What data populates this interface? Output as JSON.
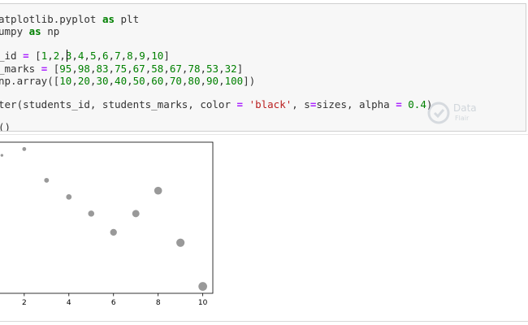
{
  "code": {
    "lines": [
      [
        {
          "t": "atplotlib.pyplot ",
          "c": ""
        },
        {
          "t": "as",
          "c": "kw"
        },
        {
          "t": " plt",
          "c": ""
        }
      ],
      [
        {
          "t": "umpy ",
          "c": ""
        },
        {
          "t": "as",
          "c": "kw"
        },
        {
          "t": " np",
          "c": ""
        }
      ],
      [],
      [
        {
          "t": "_id ",
          "c": ""
        },
        {
          "t": "=",
          "c": "op"
        },
        {
          "t": " [",
          "c": ""
        },
        {
          "t": "1",
          "c": "num"
        },
        {
          "t": ",",
          "c": ""
        },
        {
          "t": "2",
          "c": "num"
        },
        {
          "t": ",",
          "c": ""
        },
        {
          "t": "3",
          "c": "num"
        },
        {
          "t": ",",
          "c": ""
        },
        {
          "t": "4",
          "c": "num"
        },
        {
          "t": ",",
          "c": ""
        },
        {
          "t": "5",
          "c": "num"
        },
        {
          "t": ",",
          "c": ""
        },
        {
          "t": "6",
          "c": "num"
        },
        {
          "t": ",",
          "c": ""
        },
        {
          "t": "7",
          "c": "num"
        },
        {
          "t": ",",
          "c": ""
        },
        {
          "t": "8",
          "c": "num"
        },
        {
          "t": ",",
          "c": ""
        },
        {
          "t": "9",
          "c": "num"
        },
        {
          "t": ",",
          "c": ""
        },
        {
          "t": "10",
          "c": "num"
        },
        {
          "t": "]",
          "c": ""
        }
      ],
      [
        {
          "t": "_marks ",
          "c": ""
        },
        {
          "t": "=",
          "c": "op"
        },
        {
          "t": " [",
          "c": ""
        },
        {
          "t": "95",
          "c": "num"
        },
        {
          "t": ",",
          "c": ""
        },
        {
          "t": "98",
          "c": "num"
        },
        {
          "t": ",",
          "c": ""
        },
        {
          "t": "83",
          "c": "num"
        },
        {
          "t": ",",
          "c": ""
        },
        {
          "t": "75",
          "c": "num"
        },
        {
          "t": ",",
          "c": ""
        },
        {
          "t": "67",
          "c": "num"
        },
        {
          "t": ",",
          "c": ""
        },
        {
          "t": "58",
          "c": "num"
        },
        {
          "t": ",",
          "c": ""
        },
        {
          "t": "67",
          "c": "num"
        },
        {
          "t": ",",
          "c": ""
        },
        {
          "t": "78",
          "c": "num"
        },
        {
          "t": ",",
          "c": ""
        },
        {
          "t": "53",
          "c": "num"
        },
        {
          "t": ",",
          "c": ""
        },
        {
          "t": "32",
          "c": "num"
        },
        {
          "t": "]",
          "c": ""
        }
      ],
      [
        {
          "t": "np.array([",
          "c": ""
        },
        {
          "t": "10",
          "c": "num"
        },
        {
          "t": ",",
          "c": ""
        },
        {
          "t": "20",
          "c": "num"
        },
        {
          "t": ",",
          "c": ""
        },
        {
          "t": "30",
          "c": "num"
        },
        {
          "t": ",",
          "c": ""
        },
        {
          "t": "40",
          "c": "num"
        },
        {
          "t": ",",
          "c": ""
        },
        {
          "t": "50",
          "c": "num"
        },
        {
          "t": ",",
          "c": ""
        },
        {
          "t": "60",
          "c": "num"
        },
        {
          "t": ",",
          "c": ""
        },
        {
          "t": "70",
          "c": "num"
        },
        {
          "t": ",",
          "c": ""
        },
        {
          "t": "80",
          "c": "num"
        },
        {
          "t": ",",
          "c": ""
        },
        {
          "t": "90",
          "c": "num"
        },
        {
          "t": ",",
          "c": ""
        },
        {
          "t": "100",
          "c": "num"
        },
        {
          "t": "])",
          "c": ""
        }
      ],
      [],
      [
        {
          "t": "ter(students_id, students_marks, color ",
          "c": ""
        },
        {
          "t": "=",
          "c": "op"
        },
        {
          "t": " ",
          "c": ""
        },
        {
          "t": "'black'",
          "c": "str"
        },
        {
          "t": ", s",
          "c": ""
        },
        {
          "t": "=",
          "c": "op"
        },
        {
          "t": "sizes, alpha ",
          "c": ""
        },
        {
          "t": "=",
          "c": "op"
        },
        {
          "t": " ",
          "c": ""
        },
        {
          "t": "0.4",
          "c": "num"
        },
        {
          "t": ")",
          "c": ""
        }
      ],
      [],
      [
        {
          "t": "()",
          "c": ""
        }
      ]
    ]
  },
  "watermark": {
    "line1": "Data",
    "line2": "Flair"
  },
  "colors": {
    "point": "#000000",
    "point_alpha": 0.4,
    "axis": "#000000",
    "keyword": "#008000",
    "operator": "#aa22ff",
    "string": "#ba2121"
  },
  "chart_data": {
    "type": "scatter",
    "x": [
      1,
      2,
      3,
      4,
      5,
      6,
      7,
      8,
      9,
      10
    ],
    "y": [
      95,
      98,
      83,
      75,
      67,
      58,
      67,
      78,
      53,
      32
    ],
    "sizes": [
      10,
      20,
      30,
      40,
      50,
      60,
      70,
      80,
      90,
      100
    ],
    "xticks": [
      "2",
      "4",
      "6",
      "8",
      "10"
    ],
    "xtick_values": [
      2,
      4,
      6,
      8,
      10
    ],
    "xlim": [
      0.55,
      10.45
    ],
    "ylim": [
      28.7,
      101.3
    ],
    "title": "",
    "xlabel": "",
    "ylabel": ""
  }
}
